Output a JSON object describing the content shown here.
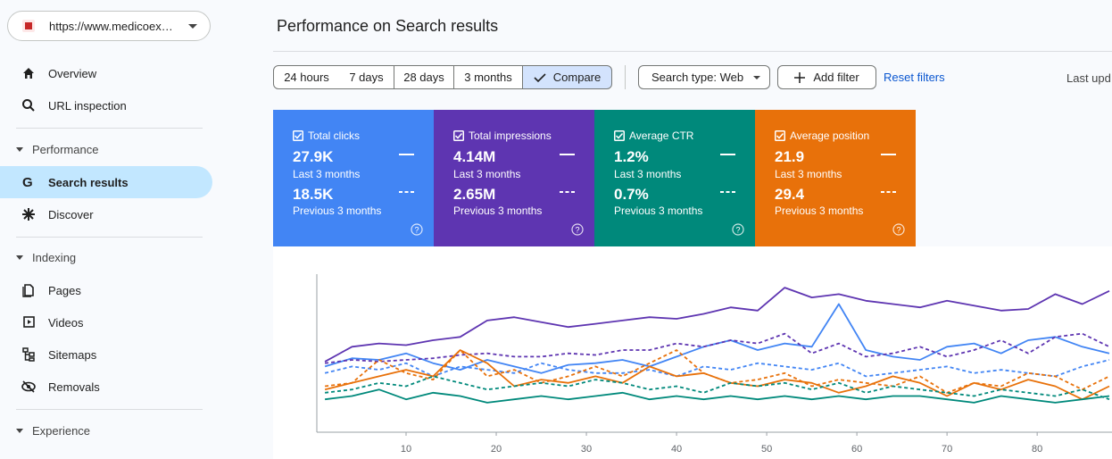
{
  "sidebar": {
    "property": "https://www.medicoex…",
    "items": [
      "Overview",
      "URL inspection"
    ],
    "sections": [
      {
        "title": "Performance",
        "items": [
          "Search results",
          "Discover"
        ]
      },
      {
        "title": "Indexing",
        "items": [
          "Pages",
          "Videos",
          "Sitemaps",
          "Removals"
        ]
      },
      {
        "title": "Experience",
        "items": []
      }
    ]
  },
  "header": {
    "title": "Performance on Search results"
  },
  "toolbar": {
    "ranges": [
      "24 hours",
      "7 days",
      "28 days",
      "3 months",
      "Compare"
    ],
    "search_type": "Search type: Web",
    "add_filter": "Add filter",
    "reset_filters": "Reset filters",
    "last_updated": "Last upd"
  },
  "metrics": [
    {
      "name": "Total clicks",
      "current": "27.9K",
      "current_period": "Last 3 months",
      "previous": "18.5K",
      "previous_period": "Previous 3 months",
      "color": "#4285f4"
    },
    {
      "name": "Total impressions",
      "current": "4.14M",
      "current_period": "Last 3 months",
      "previous": "2.65M",
      "previous_period": "Previous 3 months",
      "color": "#5e35b1"
    },
    {
      "name": "Average CTR",
      "current": "1.2%",
      "current_period": "Last 3 months",
      "previous": "0.7%",
      "previous_period": "Previous 3 months",
      "color": "#00897b"
    },
    {
      "name": "Average position",
      "current": "21.9",
      "current_period": "Last 3 months",
      "previous": "29.4",
      "previous_period": "Previous 3 months",
      "color": "#e8710a"
    }
  ],
  "chart_data": {
    "type": "line",
    "x": [
      1,
      4,
      7,
      10,
      13,
      16,
      19,
      22,
      25,
      28,
      31,
      34,
      37,
      40,
      43,
      46,
      49,
      52,
      55,
      58,
      61,
      64,
      67,
      70,
      73,
      76,
      79,
      82,
      85,
      88
    ],
    "xlim": [
      0.1,
      88.3
    ],
    "xticks": [
      10,
      20,
      30,
      40,
      50,
      60,
      70,
      80
    ],
    "ylim": [
      0,
      100
    ],
    "series": [
      {
        "color": "#5e35b1",
        "dashed": false,
        "values": [
          43,
          52,
          54,
          53,
          56,
          58,
          68,
          70,
          67,
          64,
          66,
          68,
          70,
          69,
          72,
          76,
          74,
          88,
          82,
          84,
          80,
          78,
          76,
          80,
          77,
          74,
          75,
          84,
          78,
          86
        ]
      },
      {
        "color": "#4285f4",
        "dashed": false,
        "values": [
          40,
          45,
          44,
          48,
          42,
          38,
          44,
          40,
          36,
          41,
          42,
          44,
          40,
          46,
          52,
          56,
          50,
          54,
          52,
          78,
          50,
          46,
          44,
          52,
          54,
          48,
          56,
          58,
          52,
          48
        ]
      },
      {
        "color": "#5e35b1",
        "dashed": true,
        "values": [
          42,
          44,
          43,
          44,
          45,
          47,
          48,
          46,
          46,
          48,
          47,
          50,
          50,
          54,
          52,
          56,
          54,
          60,
          48,
          54,
          46,
          48,
          52,
          46,
          50,
          56,
          48,
          58,
          60,
          52
        ]
      },
      {
        "color": "#4285f4",
        "dashed": true,
        "values": [
          36,
          40,
          38,
          42,
          34,
          40,
          38,
          36,
          42,
          38,
          36,
          36,
          38,
          34,
          40,
          38,
          42,
          40,
          38,
          42,
          34,
          36,
          38,
          40,
          36,
          38,
          36,
          34,
          40,
          44
        ]
      },
      {
        "color": "#e8710a",
        "dashed": false,
        "values": [
          26,
          30,
          34,
          38,
          34,
          50,
          42,
          28,
          32,
          30,
          34,
          30,
          40,
          34,
          36,
          30,
          28,
          32,
          30,
          24,
          28,
          34,
          30,
          22,
          30,
          26,
          32,
          28,
          20,
          28
        ]
      },
      {
        "color": "#e8710a",
        "dashed": true,
        "values": [
          28,
          30,
          44,
          36,
          32,
          50,
          34,
          38,
          30,
          34,
          40,
          34,
          42,
          50,
          36,
          30,
          32,
          36,
          28,
          32,
          30,
          28,
          34,
          24,
          30,
          28,
          36,
          34,
          26,
          34
        ]
      },
      {
        "color": "#00897b",
        "dashed": false,
        "values": [
          20,
          22,
          26,
          20,
          24,
          22,
          18,
          20,
          22,
          20,
          22,
          24,
          20,
          22,
          20,
          22,
          20,
          22,
          20,
          22,
          20,
          22,
          22,
          20,
          18,
          22,
          20,
          18,
          20,
          22
        ]
      },
      {
        "color": "#00897b",
        "dashed": true,
        "values": [
          24,
          26,
          30,
          28,
          34,
          30,
          26,
          28,
          30,
          28,
          32,
          30,
          26,
          28,
          24,
          30,
          28,
          30,
          26,
          30,
          24,
          28,
          26,
          24,
          22,
          26,
          24,
          22,
          26,
          20
        ]
      }
    ]
  }
}
